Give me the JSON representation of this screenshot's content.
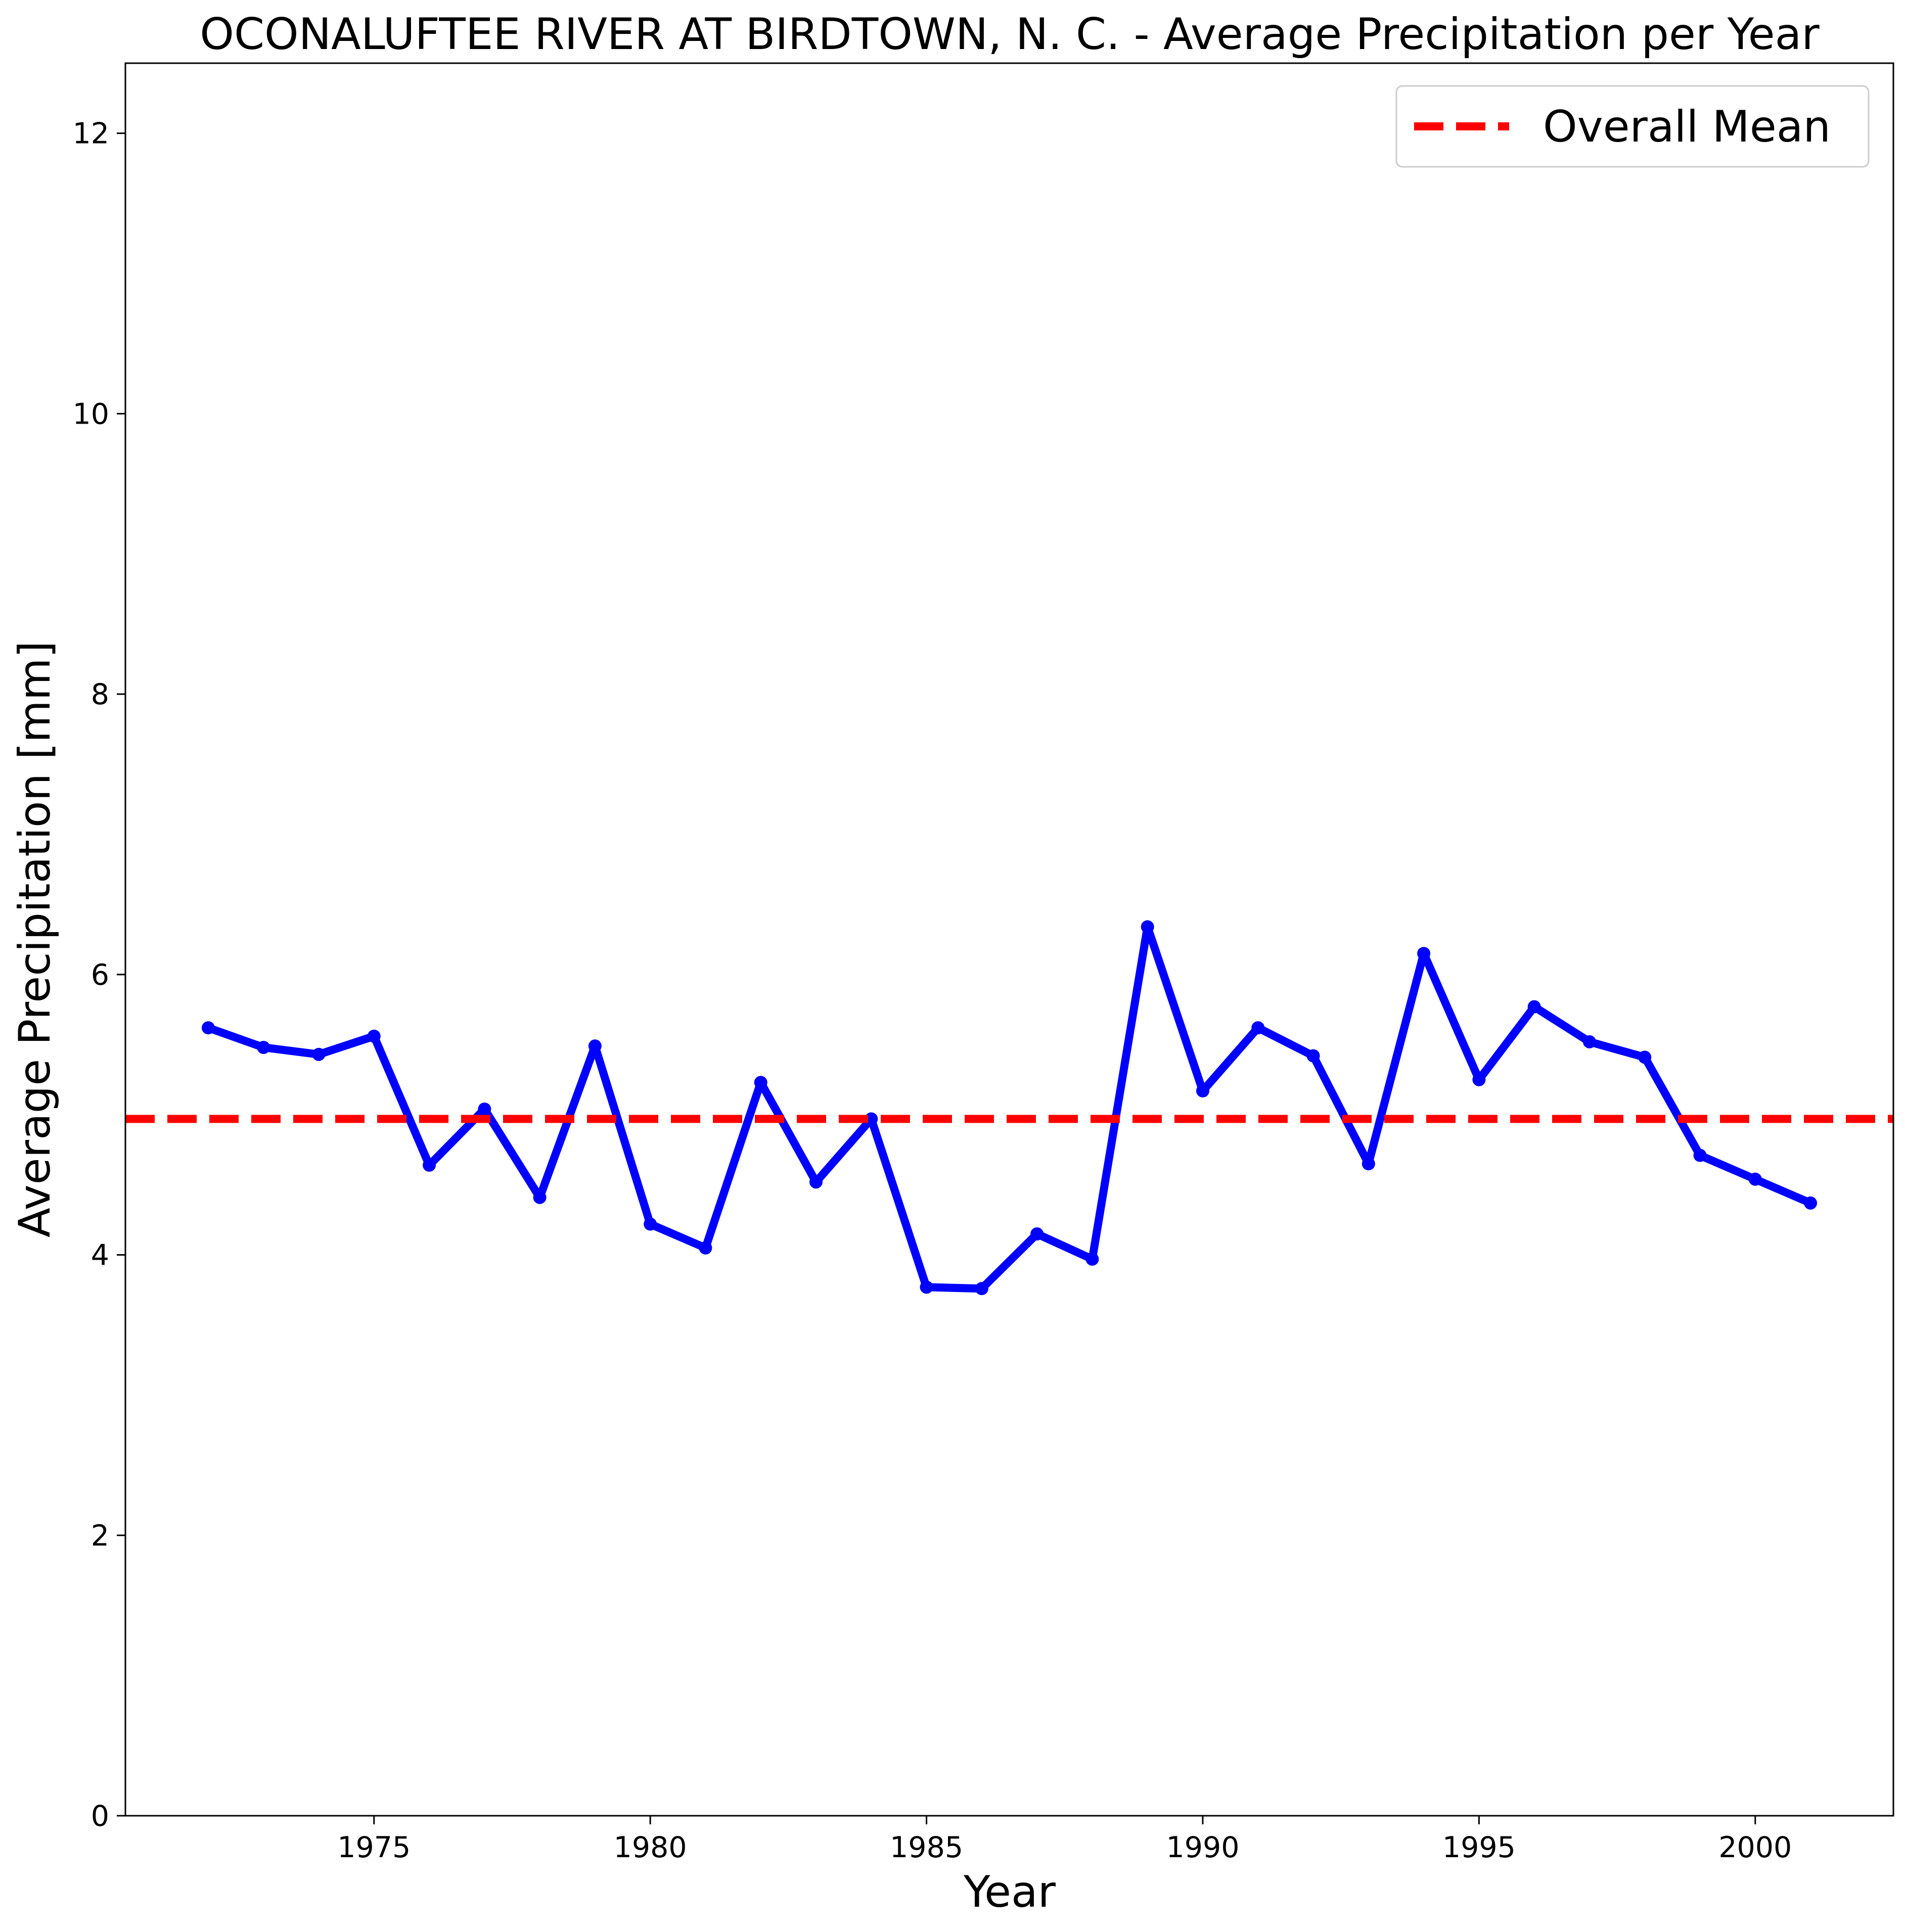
{
  "chart_data": {
    "type": "line",
    "title": "OCONALUFTEE RIVER AT BIRDTOWN, N. C. - Average Precipitation per Year",
    "xlabel": "Year",
    "ylabel": "Average Precipitation [mm]",
    "xlim": [
      1970.5,
      2002.5
    ],
    "ylim": [
      0,
      12.5
    ],
    "x_ticks": [
      1975,
      1980,
      1985,
      1990,
      1995,
      2000
    ],
    "y_ticks": [
      0,
      2,
      4,
      6,
      8,
      10,
      12
    ],
    "grid": false,
    "legend_position": "top-right",
    "series": [
      {
        "color": "#0000ff",
        "marker": "circle",
        "x": [
          1972,
          1973,
          1974,
          1975,
          1976,
          1977,
          1978,
          1979,
          1980,
          1981,
          1982,
          1983,
          1984,
          1985,
          1986,
          1987,
          1988,
          1989,
          1990,
          1991,
          1992,
          1993,
          1994,
          1995,
          1996,
          1997,
          1998,
          1999,
          2000,
          2001
        ],
        "values": [
          5.62,
          5.48,
          5.43,
          5.56,
          4.64,
          5.04,
          4.41,
          5.49,
          4.22,
          4.05,
          5.23,
          4.52,
          4.97,
          3.77,
          3.76,
          4.15,
          3.97,
          6.34,
          5.17,
          5.62,
          5.42,
          4.65,
          6.15,
          5.25,
          5.77,
          5.52,
          5.41,
          4.71,
          4.54,
          4.37
        ]
      }
    ],
    "reference_lines": [
      {
        "name": "Overall Mean",
        "value": 4.97,
        "color": "#ff0000",
        "style": "dashed"
      }
    ]
  }
}
